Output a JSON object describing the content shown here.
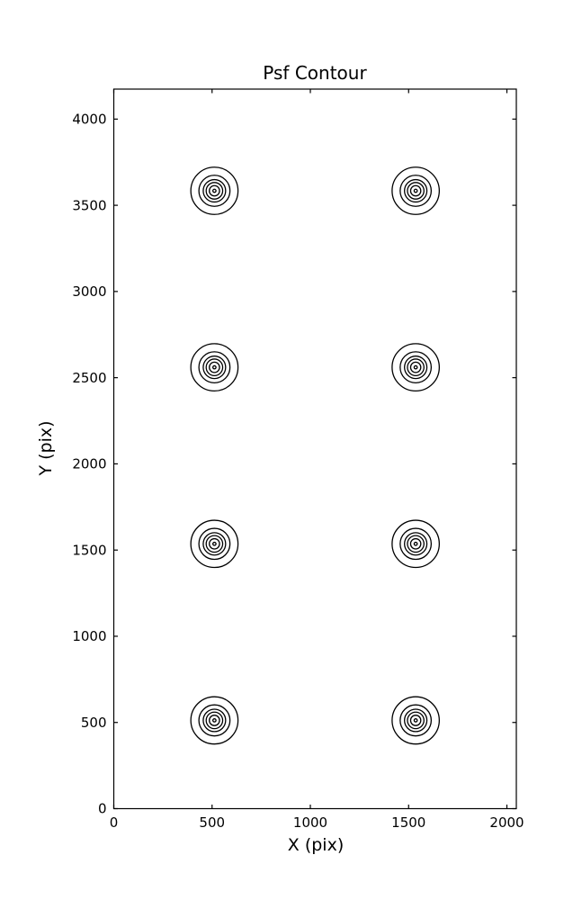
{
  "chart_data": {
    "type": "contour",
    "title": "Psf Contour",
    "xlabel": "X (pix)",
    "ylabel": "Y (pix)",
    "xlim": [
      0,
      2048
    ],
    "ylim": [
      0,
      4174
    ],
    "xticks": [
      0,
      500,
      1000,
      1500,
      2000
    ],
    "yticks": [
      0,
      500,
      1000,
      1500,
      2000,
      2500,
      3000,
      3500,
      4000
    ],
    "grid": false,
    "legend": false,
    "line_color": "#000000",
    "background_color": "#ffffff",
    "contours": {
      "description": "PSF contour clusters: concentric contour rings centered on a 2x4 grid of PSF positions",
      "centers": [
        [
          512,
          512
        ],
        [
          1536,
          512
        ],
        [
          512,
          1536
        ],
        [
          1536,
          1536
        ],
        [
          512,
          2560
        ],
        [
          1536,
          2560
        ],
        [
          512,
          3584
        ],
        [
          1536,
          3584
        ]
      ],
      "levels": 6,
      "radii_x": [
        120,
        79,
        57,
        42,
        26,
        8
      ],
      "radii_y": [
        137,
        90,
        65,
        48,
        30,
        9
      ]
    }
  }
}
